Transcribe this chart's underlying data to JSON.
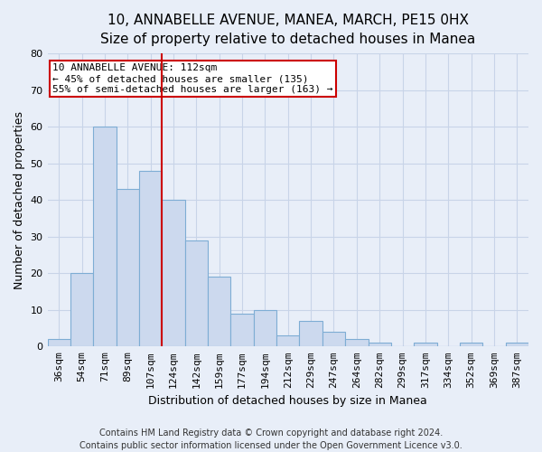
{
  "title1": "10, ANNABELLE AVENUE, MANEA, MARCH, PE15 0HX",
  "title2": "Size of property relative to detached houses in Manea",
  "xlabel": "Distribution of detached houses by size in Manea",
  "ylabel": "Number of detached properties",
  "bar_labels": [
    "36sqm",
    "54sqm",
    "71sqm",
    "89sqm",
    "107sqm",
    "124sqm",
    "142sqm",
    "159sqm",
    "177sqm",
    "194sqm",
    "212sqm",
    "229sqm",
    "247sqm",
    "264sqm",
    "282sqm",
    "299sqm",
    "317sqm",
    "334sqm",
    "352sqm",
    "369sqm",
    "387sqm"
  ],
  "bar_values": [
    2,
    20,
    60,
    43,
    48,
    40,
    29,
    19,
    9,
    10,
    3,
    7,
    4,
    2,
    1,
    0,
    1,
    0,
    1,
    0,
    1
  ],
  "bar_color": "#ccd9ee",
  "bar_edge_color": "#7eadd4",
  "vline_x": 4.5,
  "vline_color": "#cc0000",
  "annotation_line1": "10 ANNABELLE AVENUE: 112sqm",
  "annotation_line2": "← 45% of detached houses are smaller (135)",
  "annotation_line3": "55% of semi-detached houses are larger (163) →",
  "annotation_box_color": "#ffffff",
  "annotation_box_edge_color": "#cc0000",
  "ylim": [
    0,
    80
  ],
  "yticks": [
    0,
    10,
    20,
    30,
    40,
    50,
    60,
    70,
    80
  ],
  "footer1": "Contains HM Land Registry data © Crown copyright and database right 2024.",
  "footer2": "Contains public sector information licensed under the Open Government Licence v3.0.",
  "bg_color": "#e8eef8",
  "plot_bg_color": "#e8eef8",
  "grid_color": "#c8d4e8",
  "title1_fontsize": 11,
  "title2_fontsize": 10,
  "tick_fontsize": 8,
  "ylabel_fontsize": 9,
  "xlabel_fontsize": 9,
  "footer_fontsize": 7,
  "annotation_fontsize": 8
}
